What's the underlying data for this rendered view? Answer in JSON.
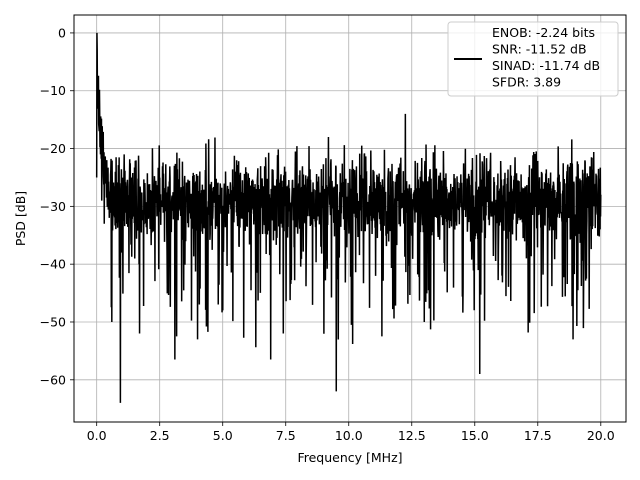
{
  "chart_data": {
    "type": "line",
    "title": "",
    "xlabel": "Frequency [MHz]",
    "ylabel": "PSD [dB]",
    "xlim": [
      -0.9,
      21.0
    ],
    "ylim": [
      -67.3,
      3.1
    ],
    "xticks": [
      0.0,
      2.5,
      5.0,
      7.5,
      10.0,
      12.5,
      15.0,
      17.5,
      20.0
    ],
    "xtick_labels": [
      "0.0",
      "2.5",
      "5.0",
      "7.5",
      "10.0",
      "12.5",
      "15.0",
      "17.5",
      "20.0"
    ],
    "yticks": [
      0,
      -10,
      -20,
      -30,
      -40,
      -50,
      -60
    ],
    "ytick_labels": [
      "0",
      "−10",
      "−20",
      "−30",
      "−40",
      "−50",
      "−60"
    ],
    "grid": true,
    "legend_position": "top-right",
    "line_color": "#000000",
    "series": [
      {
        "name": "ENOB: -2.24 bits\nSNR: -11.52 dB\nSINAD: -11.74 dB\nSFDR: 3.89",
        "color": "#000000",
        "description_points": {
          "x": [
            0.0,
            0.01,
            0.02,
            0.04,
            0.06,
            0.1,
            0.15,
            0.2,
            0.3,
            0.4,
            0.5,
            0.6,
            0.7,
            0.94,
            1.0,
            1.7,
            3.1,
            4.0,
            5.0,
            6.9,
            7.4,
            9.5,
            13.0,
            15.2,
            18.9,
            20.0
          ],
          "y": [
            -25.0,
            0.0,
            -3.0,
            -8.0,
            -12.0,
            -17.0,
            -21.0,
            -29.0,
            -33.0,
            -22.0,
            -32.0,
            -50.0,
            -30.0,
            -64.0,
            -38.0,
            -52.0,
            -56.5,
            -53.0,
            -48.0,
            -56.5,
            -52.0,
            -62.0,
            -50.0,
            -59.0,
            -53.0,
            -28.0
          ]
        },
        "noise_floor_mean": -29,
        "noise_floor_range": [
          -65,
          -14
        ]
      }
    ]
  },
  "legend": {
    "lines": [
      "ENOB: -2.24 bits",
      "SNR: -11.52 dB",
      "SINAD: -11.74 dB",
      "SFDR: 3.89"
    ]
  }
}
